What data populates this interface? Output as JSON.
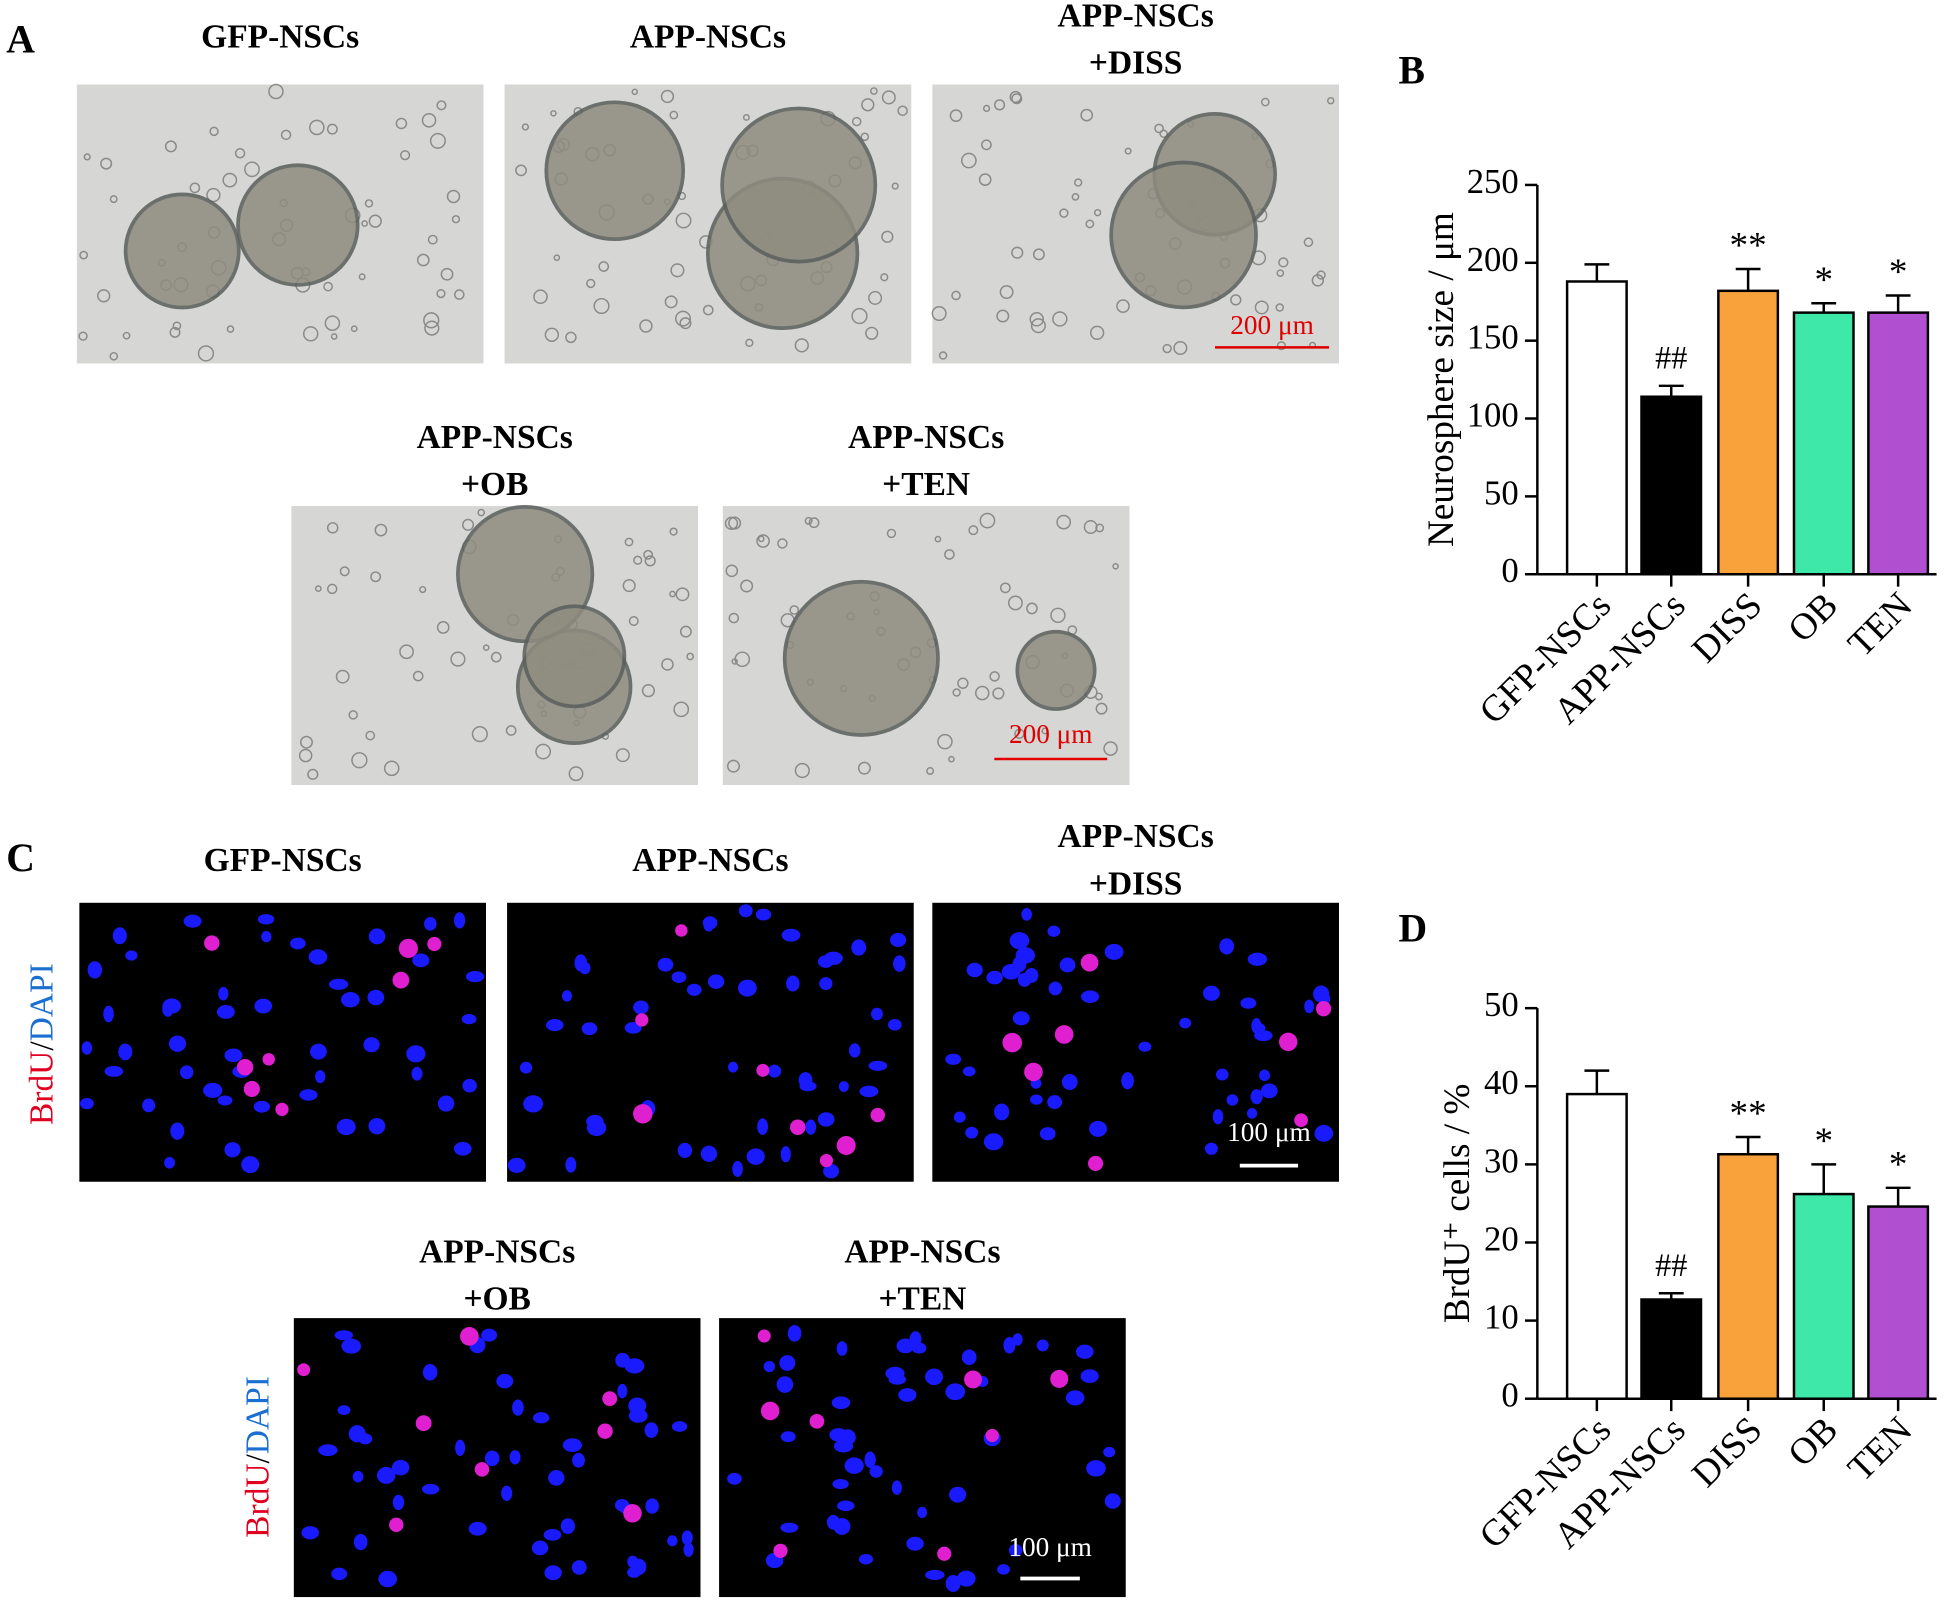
{
  "panel_labels": [
    "A",
    "B",
    "C",
    "D"
  ],
  "panel_a": {
    "images": [
      {
        "title": [
          "GFP-NSCs"
        ]
      },
      {
        "title": [
          "APP-NSCs"
        ]
      },
      {
        "title": [
          "APP-NSCs",
          "+DISS"
        ]
      },
      {
        "title": [
          "APP-NSCs",
          "+OB"
        ]
      },
      {
        "title": [
          "APP-NSCs",
          "+TEN"
        ]
      }
    ],
    "scale_bar": "200 μm"
  },
  "panel_c": {
    "images": [
      {
        "title": [
          "GFP-NSCs"
        ]
      },
      {
        "title": [
          "APP-NSCs"
        ]
      },
      {
        "title": [
          "APP-NSCs",
          "+DISS"
        ]
      },
      {
        "title": [
          "APP-NSCs",
          "+OB"
        ]
      },
      {
        "title": [
          "APP-NSCs",
          "+TEN"
        ]
      }
    ],
    "scale_bar": "100 μm",
    "stain": [
      "BrdU",
      "/",
      "DAPI"
    ]
  },
  "chart_data": [
    {
      "type": "bar",
      "ylabel": "Neurosphere size / μm",
      "categories": [
        "GFP-NSCs",
        "APP-NSCs",
        "DISS",
        "OB",
        "TEN"
      ],
      "values": [
        188,
        114,
        182,
        168,
        168
      ],
      "errors": [
        11,
        7,
        14,
        6,
        11
      ],
      "significance": [
        null,
        "##",
        "**",
        "*",
        "*"
      ],
      "colors": [
        "#ffffff",
        "#000000",
        "#f9a13a",
        "#3de8a8",
        "#b050d0"
      ],
      "ylim": [
        0,
        250
      ],
      "yticks": [
        0,
        50,
        100,
        150,
        200,
        250
      ]
    },
    {
      "type": "bar",
      "ylabel": "BrdU⁺ cells  / %",
      "categories": [
        "GFP-NSCs",
        "APP-NSCs",
        "DISS",
        "OB",
        "TEN"
      ],
      "values": [
        39,
        12.7,
        31.3,
        26.2,
        24.6
      ],
      "errors": [
        3,
        0.8,
        2.2,
        3.8,
        2.4
      ],
      "significance": [
        null,
        "##",
        "**",
        "*",
        "*"
      ],
      "colors": [
        "#ffffff",
        "#000000",
        "#f9a13a",
        "#3de8a8",
        "#b050d0"
      ],
      "ylim": [
        0,
        50
      ],
      "yticks": [
        0,
        10,
        20,
        30,
        40,
        50
      ]
    }
  ]
}
